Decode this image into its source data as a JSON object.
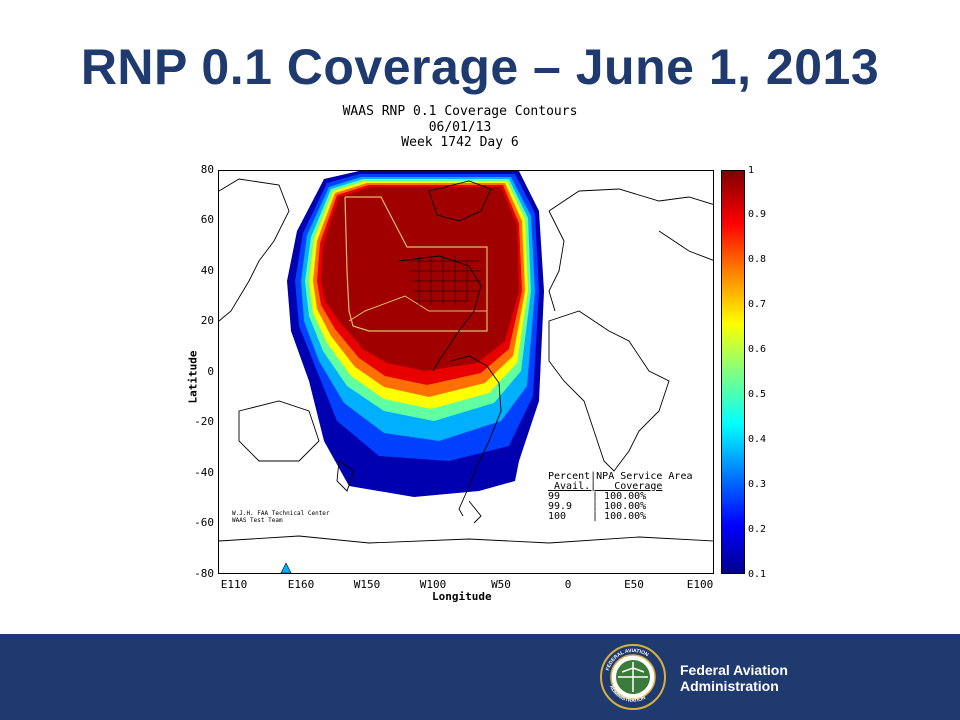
{
  "slide": {
    "title": "RNP 0.1 Coverage – June 1, 2013"
  },
  "plot": {
    "header_lines": [
      "WAAS RNP 0.1 Coverage Contours",
      "06/01/13",
      "Week 1742 Day 6"
    ],
    "ylabel": "Latitude",
    "xlabel": "Longitude",
    "y_ticks": [
      "80",
      "60",
      "40",
      "20",
      "0",
      "-20",
      "-40",
      "-60",
      "-80"
    ],
    "x_ticks": [
      "E110",
      "E160",
      "W150",
      "W100",
      "W50",
      "0",
      "E50",
      "E100"
    ],
    "colorbar_ticks": [
      "1",
      "0.9",
      "0.8",
      "0.7",
      "0.6",
      "0.5",
      "0.4",
      "0.3",
      "0.2",
      "0.1"
    ],
    "credit_line1": "W.J.H. FAA Technical Center",
    "credit_line2": "WAAS Test Team"
  },
  "stats_table": {
    "header1": "Percent|NPA Service Area",
    "header2": " Avail.|   Coverage",
    "rows": [
      {
        "avail": "99",
        "coverage": "100.00%"
      },
      {
        "avail": "99.9",
        "coverage": "100.00%"
      },
      {
        "avail": "100",
        "coverage": "100.00%"
      }
    ]
  },
  "footer": {
    "agency_line1": "Federal Aviation",
    "agency_line2": "Administration",
    "seal_text_top": "FEDERAL AVIATION",
    "seal_text_bottom": "ADMINISTRATION"
  },
  "colors": {
    "title": "#1f3a6e",
    "footer_bg": "#1f3a6e",
    "coverage_max": "#990000",
    "coverage_min": "#00008f"
  }
}
